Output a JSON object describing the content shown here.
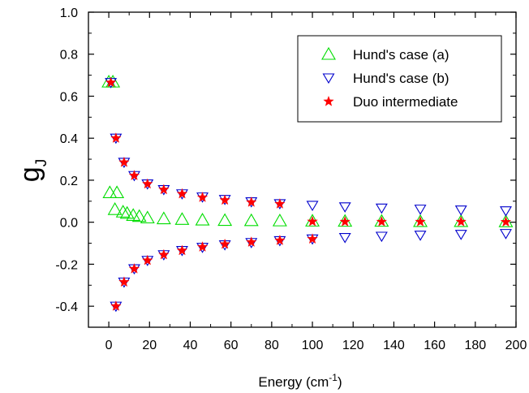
{
  "chart_data": {
    "type": "scatter",
    "xlabel": "Energy (cm",
    "xlabel_sup": "-1",
    "xlabel_end": ")",
    "ylabel": "g",
    "ylabel_sub": "J",
    "xlim": [
      -10,
      200
    ],
    "ylim": [
      -0.5,
      1.0
    ],
    "x_ticks": [
      0,
      20,
      40,
      60,
      80,
      100,
      120,
      140,
      160,
      180,
      200
    ],
    "y_ticks": [
      -0.4,
      -0.2,
      0.0,
      0.2,
      0.4,
      0.6,
      0.8,
      1.0
    ],
    "x_tick_labels": [
      "0",
      "20",
      "40",
      "60",
      "80",
      "100",
      "120",
      "140",
      "160",
      "180",
      "200"
    ],
    "y_tick_labels": [
      "-0.4",
      "-0.2",
      "0.0",
      "0.2",
      "0.4",
      "0.6",
      "0.8",
      "1.0"
    ],
    "legend_position": "top-right",
    "series": [
      {
        "name": "Hund's case (a)",
        "marker": "triangle-up",
        "color": "#00dd00",
        "points": [
          [
            0,
            0.667
          ],
          [
            2,
            0.667
          ],
          [
            0.5,
            0.14
          ],
          [
            4,
            0.14
          ],
          [
            3,
            0.06
          ],
          [
            7,
            0.048
          ],
          [
            9,
            0.042
          ],
          [
            12,
            0.032
          ],
          [
            15,
            0.027
          ],
          [
            19,
            0.02
          ],
          [
            27,
            0.016
          ],
          [
            36,
            0.013
          ],
          [
            46,
            0.01
          ],
          [
            57,
            0.008
          ],
          [
            70,
            0.007
          ],
          [
            84,
            0.006
          ],
          [
            100,
            0.005
          ],
          [
            116,
            0.004
          ],
          [
            134,
            0.004
          ],
          [
            153,
            0.003
          ],
          [
            173,
            0.003
          ],
          [
            195,
            0.002
          ]
        ]
      },
      {
        "name": "Hund's case (b)",
        "marker": "triangle-down",
        "color": "#0000cc",
        "points": [
          [
            1,
            0.665
          ],
          [
            3.5,
            0.4
          ],
          [
            7.5,
            0.285
          ],
          [
            12.5,
            0.222
          ],
          [
            19,
            0.182
          ],
          [
            27,
            0.155
          ],
          [
            36,
            0.135
          ],
          [
            46,
            0.12
          ],
          [
            57,
            0.108
          ],
          [
            70,
            0.097
          ],
          [
            84,
            0.088
          ],
          [
            100,
            0.08
          ],
          [
            116,
            0.073
          ],
          [
            134,
            0.067
          ],
          [
            153,
            0.062
          ],
          [
            173,
            0.058
          ],
          [
            195,
            0.054
          ],
          [
            3.5,
            -0.4
          ],
          [
            7.5,
            -0.285
          ],
          [
            12.5,
            -0.222
          ],
          [
            19,
            -0.182
          ],
          [
            27,
            -0.155
          ],
          [
            36,
            -0.135
          ],
          [
            46,
            -0.12
          ],
          [
            57,
            -0.108
          ],
          [
            70,
            -0.097
          ],
          [
            84,
            -0.088
          ],
          [
            100,
            -0.08
          ],
          [
            116,
            -0.073
          ],
          [
            134,
            -0.067
          ],
          [
            153,
            -0.062
          ],
          [
            173,
            -0.058
          ],
          [
            195,
            -0.054
          ]
        ]
      },
      {
        "name": "Duo intermediate",
        "marker": "star",
        "color": "#ff0000",
        "points": [
          [
            1,
            0.665
          ],
          [
            3.5,
            0.4
          ],
          [
            7.5,
            0.285
          ],
          [
            12.5,
            0.222
          ],
          [
            19,
            0.182
          ],
          [
            27,
            0.155
          ],
          [
            36,
            0.135
          ],
          [
            46,
            0.118
          ],
          [
            57,
            0.105
          ],
          [
            70,
            0.095
          ],
          [
            84,
            0.087
          ],
          [
            3.5,
            -0.4
          ],
          [
            7.5,
            -0.285
          ],
          [
            12.5,
            -0.222
          ],
          [
            19,
            -0.182
          ],
          [
            27,
            -0.155
          ],
          [
            36,
            -0.135
          ],
          [
            46,
            -0.118
          ],
          [
            57,
            -0.105
          ],
          [
            70,
            -0.095
          ],
          [
            84,
            -0.087
          ],
          [
            100,
            -0.08
          ],
          [
            100,
            0.003
          ],
          [
            116,
            0.002
          ],
          [
            134,
            0.002
          ],
          [
            153,
            0.002
          ],
          [
            173,
            0.002
          ],
          [
            195,
            0.001
          ]
        ]
      }
    ]
  }
}
